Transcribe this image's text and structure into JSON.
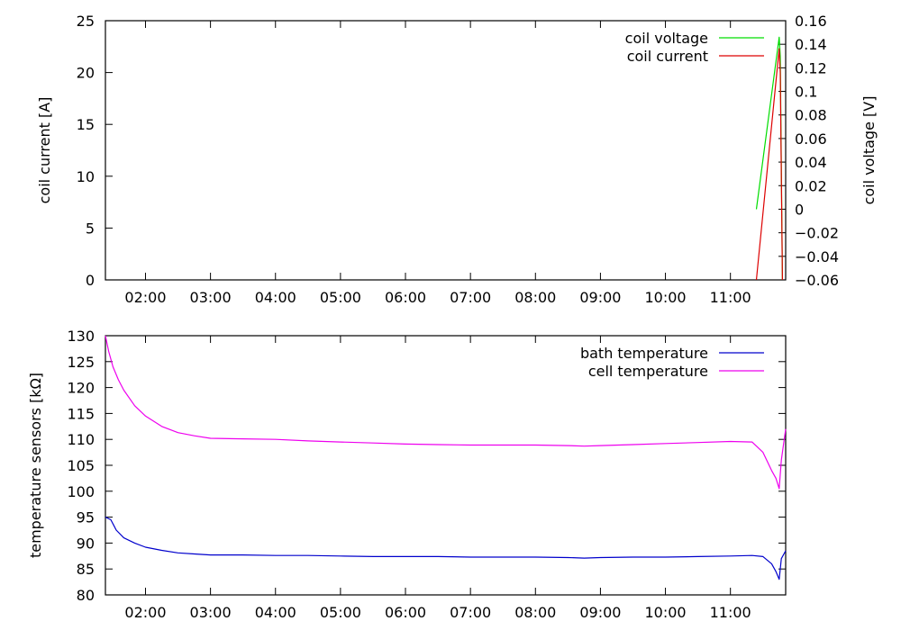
{
  "chart_data": [
    {
      "type": "line",
      "xlabel": "",
      "ylabel": "coil current [A]",
      "y2label": "coil voltage [V]",
      "xlim": [
        "01:23",
        "11:51"
      ],
      "ylim": [
        0,
        25
      ],
      "y2lim": [
        -0.06,
        0.16
      ],
      "xticks": [
        "02:00",
        "03:00",
        "04:00",
        "05:00",
        "06:00",
        "07:00",
        "08:00",
        "09:00",
        "10:00",
        "11:00"
      ],
      "yticks": [
        "0",
        "5",
        "10",
        "15",
        "20",
        "25"
      ],
      "y2ticks": [
        "−0.06",
        "−0.04",
        "−0.02",
        "0",
        "0.02",
        "0.04",
        "0.06",
        "0.08",
        "0.1",
        "0.12",
        "0.14",
        "0.16"
      ],
      "legend": "top-right",
      "grid": false,
      "series": [
        {
          "name": "coil voltage",
          "axis": "right",
          "color": "#00dd00",
          "x": [
            "11:24",
            "11:45",
            "11:46",
            "11:48"
          ],
          "y": [
            0.0,
            0.146,
            0.13,
            -0.06
          ]
        },
        {
          "name": "coil current",
          "axis": "left",
          "color": "#dd0000",
          "x": [
            "11:24",
            "11:45",
            "11:46",
            "11:48"
          ],
          "y": [
            0.0,
            22.3,
            20.0,
            0.0
          ]
        }
      ]
    },
    {
      "type": "line",
      "xlabel": "",
      "ylabel": "temperature sensors [kΩ]",
      "xlim": [
        "01:23",
        "11:51"
      ],
      "ylim": [
        80,
        130
      ],
      "xticks": [
        "02:00",
        "03:00",
        "04:00",
        "05:00",
        "06:00",
        "07:00",
        "08:00",
        "09:00",
        "10:00",
        "11:00"
      ],
      "yticks": [
        "80",
        "85",
        "90",
        "95",
        "100",
        "105",
        "110",
        "115",
        "120",
        "125",
        "130"
      ],
      "legend": "top-right",
      "grid": false,
      "series": [
        {
          "name": "bath temperature",
          "color": "#0000cc",
          "x": [
            "01:23",
            "01:28",
            "01:33",
            "01:40",
            "01:50",
            "02:00",
            "02:15",
            "02:30",
            "02:45",
            "03:00",
            "03:30",
            "04:00",
            "04:30",
            "05:00",
            "05:30",
            "06:00",
            "06:30",
            "07:00",
            "07:30",
            "08:00",
            "08:30",
            "08:45",
            "09:00",
            "09:30",
            "10:00",
            "10:30",
            "11:00",
            "11:20",
            "11:30",
            "11:38",
            "11:42",
            "11:45",
            "11:47",
            "11:51"
          ],
          "y": [
            95.0,
            94.5,
            92.5,
            91.0,
            90.0,
            89.2,
            88.6,
            88.1,
            87.9,
            87.7,
            87.7,
            87.6,
            87.6,
            87.5,
            87.4,
            87.4,
            87.4,
            87.3,
            87.3,
            87.3,
            87.2,
            87.1,
            87.2,
            87.3,
            87.3,
            87.4,
            87.5,
            87.6,
            87.4,
            86.0,
            84.5,
            83.0,
            87.0,
            88.5
          ]
        },
        {
          "name": "cell temperature",
          "color": "#ee00ee",
          "x": [
            "01:23",
            "01:26",
            "01:30",
            "01:35",
            "01:40",
            "01:50",
            "02:00",
            "02:15",
            "02:30",
            "02:45",
            "03:00",
            "03:30",
            "04:00",
            "04:30",
            "05:00",
            "05:30",
            "06:00",
            "06:30",
            "07:00",
            "07:30",
            "08:00",
            "08:30",
            "08:45",
            "09:00",
            "09:30",
            "10:00",
            "10:30",
            "11:00",
            "11:20",
            "11:30",
            "11:38",
            "11:42",
            "11:45",
            "11:47",
            "11:51"
          ],
          "y": [
            130.0,
            127.0,
            124.0,
            121.5,
            119.5,
            116.5,
            114.5,
            112.5,
            111.3,
            110.7,
            110.2,
            110.1,
            110.0,
            109.7,
            109.5,
            109.3,
            109.1,
            109.0,
            108.9,
            108.9,
            108.9,
            108.8,
            108.7,
            108.8,
            109.0,
            109.2,
            109.4,
            109.6,
            109.5,
            107.5,
            104.0,
            102.5,
            100.5,
            106.0,
            112.0
          ]
        }
      ]
    }
  ]
}
